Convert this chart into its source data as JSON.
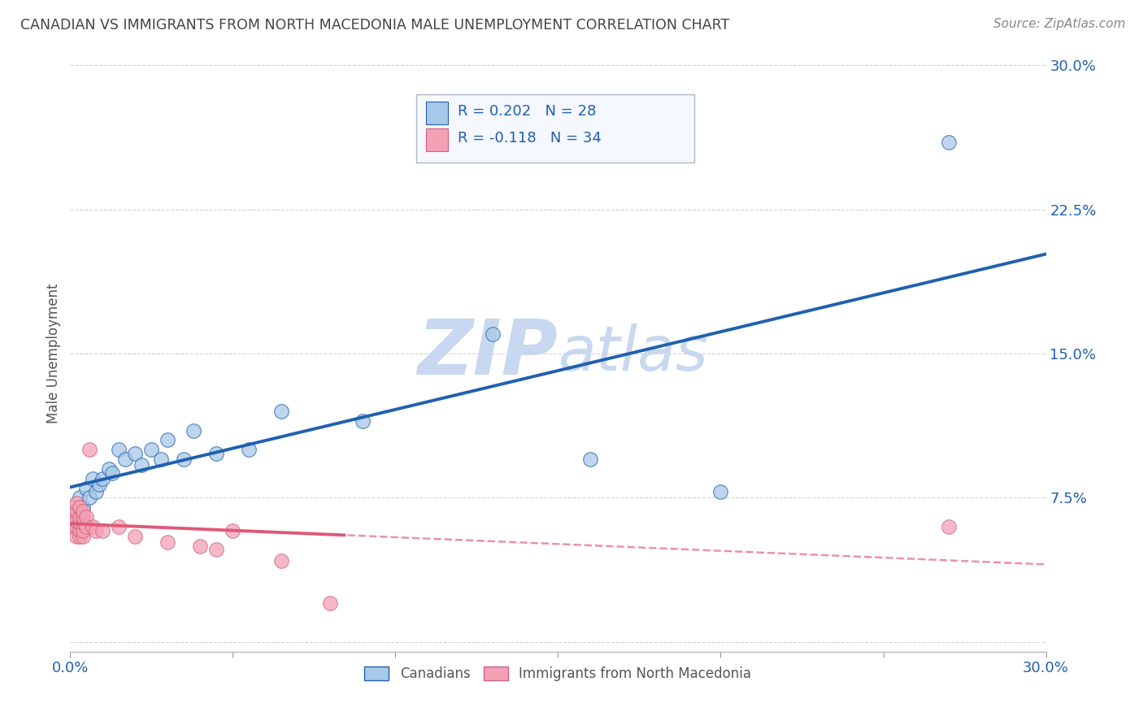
{
  "title": "CANADIAN VS IMMIGRANTS FROM NORTH MACEDONIA MALE UNEMPLOYMENT CORRELATION CHART",
  "source": "Source: ZipAtlas.com",
  "ylabel": "Male Unemployment",
  "legend_labels": [
    "Canadians",
    "Immigrants from North Macedonia"
  ],
  "r_canadian": 0.202,
  "n_canadian": 28,
  "r_immigrant": -0.118,
  "n_immigrant": 34,
  "xlim": [
    0.0,
    0.3
  ],
  "ylim": [
    -0.005,
    0.305
  ],
  "yticks": [
    0.0,
    0.075,
    0.15,
    0.225,
    0.3
  ],
  "ytick_labels": [
    "",
    "7.5%",
    "15.0%",
    "22.5%",
    "30.0%"
  ],
  "color_canadian": "#a8c8e8",
  "color_immigrant": "#f4a0b5",
  "line_color_canadian": "#2060b0",
  "line_color_immigrant": "#e05878",
  "background_color": "#ffffff",
  "grid_color": "#cccccc",
  "title_color": "#444444",
  "axis_label_color": "#555555",
  "tick_label_color": "#2060b0",
  "canadian_points_x": [
    0.002,
    0.003,
    0.004,
    0.005,
    0.006,
    0.007,
    0.008,
    0.009,
    0.01,
    0.012,
    0.013,
    0.015,
    0.017,
    0.02,
    0.022,
    0.025,
    0.028,
    0.03,
    0.035,
    0.038,
    0.045,
    0.055,
    0.065,
    0.09,
    0.13,
    0.16,
    0.2,
    0.27
  ],
  "canadian_points_y": [
    0.065,
    0.075,
    0.07,
    0.08,
    0.075,
    0.085,
    0.078,
    0.082,
    0.085,
    0.09,
    0.088,
    0.1,
    0.095,
    0.098,
    0.092,
    0.1,
    0.095,
    0.105,
    0.095,
    0.11,
    0.098,
    0.1,
    0.12,
    0.115,
    0.16,
    0.095,
    0.078,
    0.26
  ],
  "immigrant_points_x": [
    0.001,
    0.001,
    0.001,
    0.001,
    0.002,
    0.002,
    0.002,
    0.002,
    0.002,
    0.003,
    0.003,
    0.003,
    0.003,
    0.003,
    0.004,
    0.004,
    0.004,
    0.004,
    0.004,
    0.005,
    0.005,
    0.006,
    0.007,
    0.008,
    0.01,
    0.015,
    0.02,
    0.03,
    0.04,
    0.045,
    0.05,
    0.065,
    0.08,
    0.27
  ],
  "immigrant_points_y": [
    0.06,
    0.063,
    0.067,
    0.07,
    0.055,
    0.06,
    0.063,
    0.068,
    0.072,
    0.055,
    0.058,
    0.062,
    0.065,
    0.07,
    0.055,
    0.058,
    0.062,
    0.065,
    0.068,
    0.06,
    0.065,
    0.1,
    0.06,
    0.058,
    0.058,
    0.06,
    0.055,
    0.052,
    0.05,
    0.048,
    0.058,
    0.042,
    0.02,
    0.06
  ],
  "watermark_zip": "ZIP",
  "watermark_atlas": "atlas",
  "watermark_color": "#c8d8f0"
}
